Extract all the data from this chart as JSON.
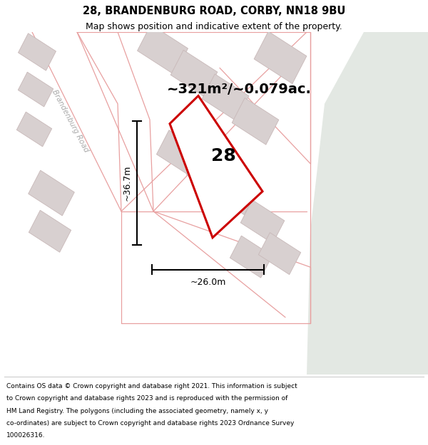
{
  "title": "28, BRANDENBURG ROAD, CORBY, NN18 9BU",
  "subtitle": "Map shows position and indicative extent of the property.",
  "footer_lines": [
    "Contains OS data © Crown copyright and database right 2021. This information is subject",
    "to Crown copyright and database rights 2023 and is reproduced with the permission of",
    "HM Land Registry. The polygons (including the associated geometry, namely x, y",
    "co-ordinates) are subject to Crown copyright and database rights 2023 Ordnance Survey",
    "100026316."
  ],
  "area_label": "~321m²/~0.079ac.",
  "number_label": "28",
  "dim_width": "~26.0m",
  "dim_height": "~36.7m",
  "map_bg": "#f2eaea",
  "green_bg": "#e3e8e3",
  "road_color": "#e8a0a0",
  "building_fill": "#d8d0d0",
  "building_edge": "#c8b8b8",
  "highlight_color": "#cc0000",
  "road_label": "Brandenburg Road",
  "title_fontsize": 10.5,
  "subtitle_fontsize": 9,
  "footer_fontsize": 6.5,
  "area_fontsize": 14,
  "number_fontsize": 18,
  "dim_fontsize": 9
}
